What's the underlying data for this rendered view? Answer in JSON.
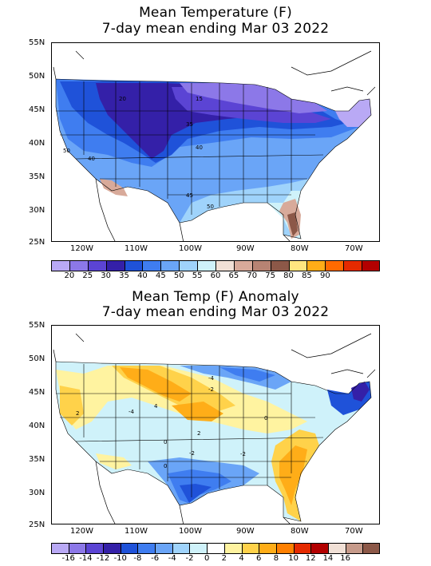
{
  "maps": [
    {
      "title_line1": "Mean Temperature (F)",
      "title_line2": "7-day mean ending Mar 03 2022",
      "lat_labels": [
        "55N",
        "50N",
        "45N",
        "40N",
        "35N",
        "30N",
        "25N"
      ],
      "lon_labels": [
        "120W",
        "110W",
        "100W",
        "90W",
        "80W",
        "70W"
      ],
      "contour_labels": [
        "20",
        "15",
        "35",
        "40",
        "40",
        "45",
        "50",
        "50"
      ],
      "colorbar": {
        "colors": [
          "#b9a9f5",
          "#8c78e8",
          "#5b44d4",
          "#3420a8",
          "#1f52d9",
          "#3f7df0",
          "#6aa5f7",
          "#9fd3fb",
          "#cff2fa",
          "#f1e0d6",
          "#d8aa9a",
          "#b78373",
          "#8c5848",
          "#ffe680",
          "#ffad18",
          "#ff6a00",
          "#e52a00",
          "#b30000"
        ],
        "labels": [
          "20",
          "25",
          "30",
          "35",
          "40",
          "45",
          "50",
          "55",
          "60",
          "65",
          "70",
          "75",
          "80",
          "85",
          "90"
        ]
      }
    },
    {
      "title_line1": "Mean Temp (F) Anomaly",
      "title_line2": "7-day mean ending Mar 03 2022",
      "lat_labels": [
        "55N",
        "50N",
        "45N",
        "40N",
        "35N",
        "30N",
        "25N"
      ],
      "lon_labels": [
        "120W",
        "110W",
        "100W",
        "90W",
        "80W",
        "70W"
      ],
      "contour_labels": [
        "-4",
        "-2",
        "4",
        "2",
        "0",
        "-2",
        "0",
        "-4",
        "-2",
        "2",
        "0"
      ],
      "colorbar": {
        "colors": [
          "#b9a9f5",
          "#8c78e8",
          "#5b44d4",
          "#3420a8",
          "#1f52d9",
          "#3f7df0",
          "#6aa5f7",
          "#9fd3fb",
          "#cff2fa",
          "#ffffff",
          "#fff3a0",
          "#ffd24a",
          "#ffad18",
          "#ff8000",
          "#e52a00",
          "#b30000",
          "#f1e0d6",
          "#c69a8a",
          "#8c5848"
        ],
        "labels": [
          "-16",
          "-14",
          "-12",
          "-10",
          "-8",
          "-6",
          "-4",
          "-2",
          "0",
          "2",
          "4",
          "6",
          "8",
          "10",
          "12",
          "14",
          "16"
        ]
      }
    }
  ]
}
